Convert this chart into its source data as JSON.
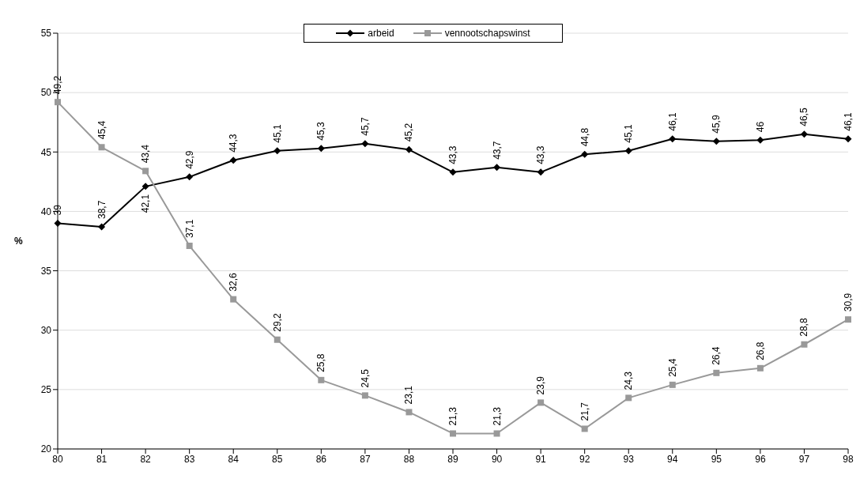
{
  "chart_data": {
    "type": "line",
    "ylabel": "%",
    "categories": [
      "80",
      "81",
      "82",
      "83",
      "84",
      "85",
      "86",
      "87",
      "88",
      "89",
      "90",
      "91",
      "92",
      "93",
      "94",
      "95",
      "96",
      "97",
      "98"
    ],
    "series": [
      {
        "name": "arbeid",
        "color": "#000000",
        "marker": "diamond",
        "values": [
          39,
          38.7,
          42.1,
          42.9,
          44.3,
          45.1,
          45.3,
          45.7,
          45.2,
          43.3,
          43.7,
          43.3,
          44.8,
          45.1,
          46.1,
          45.9,
          46,
          46.5,
          46.1
        ],
        "value_labels": [
          "39",
          "38,7",
          "42,1",
          "42,9",
          "44,3",
          "45,1",
          "45,3",
          "45,7",
          "45,2",
          "43,3",
          "43,7",
          "43,3",
          "44,8",
          "45,1",
          "46,1",
          "45,9",
          "46",
          "46,5",
          "46,1"
        ]
      },
      {
        "name": "vennootschapswinst",
        "color": "#999999",
        "marker": "square",
        "values": [
          49.2,
          45.4,
          43.4,
          37.1,
          32.6,
          29.2,
          25.8,
          24.5,
          23.1,
          21.3,
          21.3,
          23.9,
          21.7,
          24.3,
          25.4,
          26.4,
          26.8,
          28.8,
          30.9
        ],
        "value_labels": [
          "49,2",
          "45,4",
          "43,4",
          "37,1",
          "32,6",
          "29,2",
          "25,8",
          "24,5",
          "23,1",
          "21,3",
          "21,3",
          "23,9",
          "21,7",
          "24,3",
          "25,4",
          "26,4",
          "26,8",
          "28,8",
          "30,9"
        ]
      }
    ],
    "ylim": [
      20,
      55
    ],
    "yticks": [
      20,
      25,
      30,
      35,
      40,
      45,
      50,
      55
    ],
    "grid": "y",
    "legend": "top",
    "line_style": "solid"
  }
}
